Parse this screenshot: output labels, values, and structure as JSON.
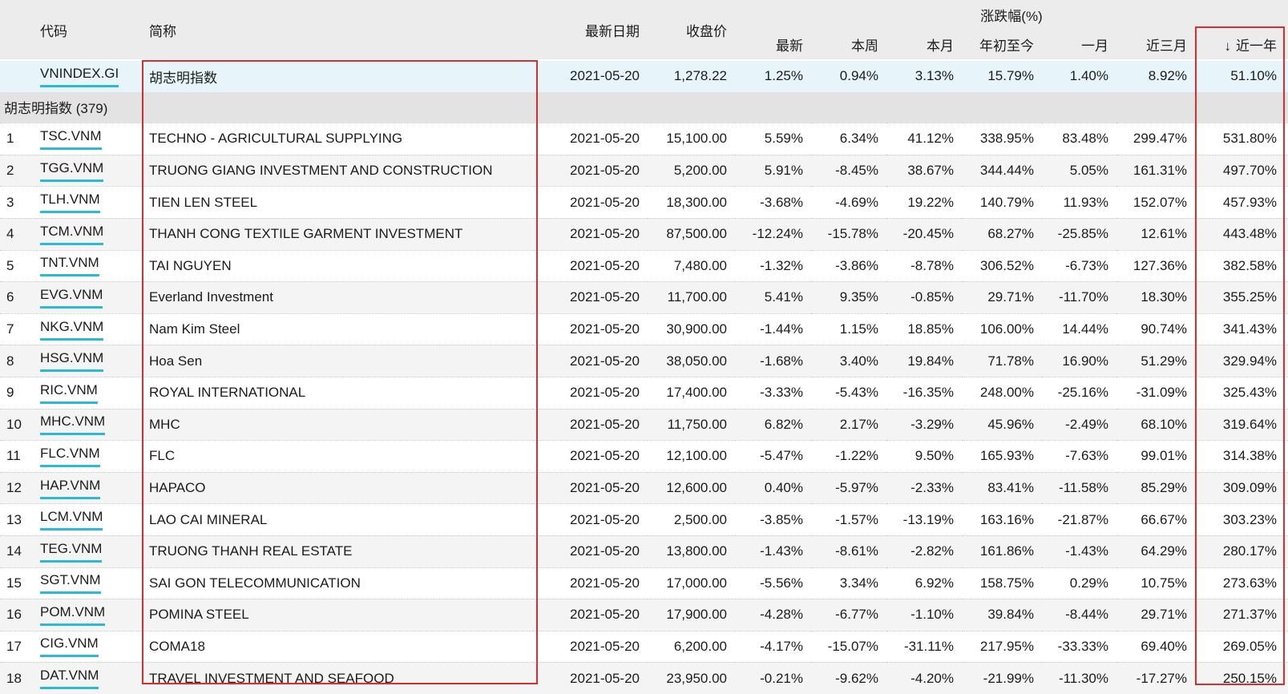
{
  "table": {
    "headers": {
      "code": "代码",
      "name": "简称",
      "date": "最新日期",
      "close": "收盘价",
      "change_group": "涨跌幅(%)",
      "sub": [
        "最新",
        "本周",
        "本月",
        "年初至今",
        "一月",
        "近三月",
        "近一年"
      ],
      "sort_arrow": "↓",
      "sorted_column": "近一年",
      "sort_direction": "descending"
    },
    "index_row": {
      "code": "VNINDEX.GI",
      "name": "胡志明指数",
      "date": "2021-05-20",
      "close": "1,278.22",
      "changes": [
        "1.25%",
        "0.94%",
        "3.13%",
        "15.79%",
        "1.40%",
        "8.92%",
        "51.10%"
      ]
    },
    "section_label": "胡志明指数 (379)",
    "rows": [
      {
        "idx": "1",
        "code": "TSC.VNM",
        "name": "TECHNO - AGRICULTURAL SUPPLYING",
        "date": "2021-05-20",
        "close": "15,100.00",
        "changes": [
          "5.59%",
          "6.34%",
          "41.12%",
          "338.95%",
          "83.48%",
          "299.47%",
          "531.80%"
        ]
      },
      {
        "idx": "2",
        "code": "TGG.VNM",
        "name": "TRUONG GIANG INVESTMENT AND CONSTRUCTION",
        "date": "2021-05-20",
        "close": "5,200.00",
        "changes": [
          "5.91%",
          "-8.45%",
          "38.67%",
          "344.44%",
          "5.05%",
          "161.31%",
          "497.70%"
        ]
      },
      {
        "idx": "3",
        "code": "TLH.VNM",
        "name": "TIEN LEN STEEL",
        "date": "2021-05-20",
        "close": "18,300.00",
        "changes": [
          "-3.68%",
          "-4.69%",
          "19.22%",
          "140.79%",
          "11.93%",
          "152.07%",
          "457.93%"
        ]
      },
      {
        "idx": "4",
        "code": "TCM.VNM",
        "name": "THANH CONG TEXTILE GARMENT INVESTMENT",
        "date": "2021-05-20",
        "close": "87,500.00",
        "changes": [
          "-12.24%",
          "-15.78%",
          "-20.45%",
          "68.27%",
          "-25.85%",
          "12.61%",
          "443.48%"
        ]
      },
      {
        "idx": "5",
        "code": "TNT.VNM",
        "name": "TAI NGUYEN",
        "date": "2021-05-20",
        "close": "7,480.00",
        "changes": [
          "-1.32%",
          "-3.86%",
          "-8.78%",
          "306.52%",
          "-6.73%",
          "127.36%",
          "382.58%"
        ]
      },
      {
        "idx": "6",
        "code": "EVG.VNM",
        "name": "Everland Investment",
        "date": "2021-05-20",
        "close": "11,700.00",
        "changes": [
          "5.41%",
          "9.35%",
          "-0.85%",
          "29.71%",
          "-11.70%",
          "18.30%",
          "355.25%"
        ]
      },
      {
        "idx": "7",
        "code": "NKG.VNM",
        "name": "Nam Kim Steel",
        "date": "2021-05-20",
        "close": "30,900.00",
        "changes": [
          "-1.44%",
          "1.15%",
          "18.85%",
          "106.00%",
          "14.44%",
          "90.74%",
          "341.43%"
        ]
      },
      {
        "idx": "8",
        "code": "HSG.VNM",
        "name": "Hoa Sen",
        "date": "2021-05-20",
        "close": "38,050.00",
        "changes": [
          "-1.68%",
          "3.40%",
          "19.84%",
          "71.78%",
          "16.90%",
          "51.29%",
          "329.94%"
        ]
      },
      {
        "idx": "9",
        "code": "RIC.VNM",
        "name": "ROYAL INTERNATIONAL",
        "date": "2021-05-20",
        "close": "17,400.00",
        "changes": [
          "-3.33%",
          "-5.43%",
          "-16.35%",
          "248.00%",
          "-25.16%",
          "-31.09%",
          "325.43%"
        ]
      },
      {
        "idx": "10",
        "code": "MHC.VNM",
        "name": "MHC",
        "date": "2021-05-20",
        "close": "11,750.00",
        "changes": [
          "6.82%",
          "2.17%",
          "-3.29%",
          "45.96%",
          "-2.49%",
          "68.10%",
          "319.64%"
        ]
      },
      {
        "idx": "11",
        "code": "FLC.VNM",
        "name": "FLC",
        "date": "2021-05-20",
        "close": "12,100.00",
        "changes": [
          "-5.47%",
          "-1.22%",
          "9.50%",
          "165.93%",
          "-7.63%",
          "99.01%",
          "314.38%"
        ]
      },
      {
        "idx": "12",
        "code": "HAP.VNM",
        "name": "HAPACO",
        "date": "2021-05-20",
        "close": "12,600.00",
        "changes": [
          "0.40%",
          "-5.97%",
          "-2.33%",
          "83.41%",
          "-11.58%",
          "85.29%",
          "309.09%"
        ]
      },
      {
        "idx": "13",
        "code": "LCM.VNM",
        "name": "LAO CAI MINERAL",
        "date": "2021-05-20",
        "close": "2,500.00",
        "changes": [
          "-3.85%",
          "-1.57%",
          "-13.19%",
          "163.16%",
          "-21.87%",
          "66.67%",
          "303.23%"
        ]
      },
      {
        "idx": "14",
        "code": "TEG.VNM",
        "name": "TRUONG THANH REAL ESTATE",
        "date": "2021-05-20",
        "close": "13,800.00",
        "changes": [
          "-1.43%",
          "-8.61%",
          "-2.82%",
          "161.86%",
          "-1.43%",
          "64.29%",
          "280.17%"
        ]
      },
      {
        "idx": "15",
        "code": "SGT.VNM",
        "name": "SAI GON TELECOMMUNICATION",
        "date": "2021-05-20",
        "close": "17,000.00",
        "changes": [
          "-5.56%",
          "3.34%",
          "6.92%",
          "158.75%",
          "0.29%",
          "10.75%",
          "273.63%"
        ]
      },
      {
        "idx": "16",
        "code": "POM.VNM",
        "name": "POMINA STEEL",
        "date": "2021-05-20",
        "close": "17,900.00",
        "changes": [
          "-4.28%",
          "-6.77%",
          "-1.10%",
          "39.84%",
          "-8.44%",
          "29.71%",
          "271.37%"
        ]
      },
      {
        "idx": "17",
        "code": "CIG.VNM",
        "name": "COMA18",
        "date": "2021-05-20",
        "close": "6,200.00",
        "changes": [
          "-4.17%",
          "-15.07%",
          "-31.11%",
          "217.95%",
          "-33.33%",
          "69.40%",
          "269.05%"
        ]
      },
      {
        "idx": "18",
        "code": "DAT.VNM",
        "name": "TRAVEL INVESTMENT AND SEAFOOD",
        "date": "2021-05-20",
        "close": "23,950.00",
        "changes": [
          "-0.21%",
          "-9.62%",
          "-4.20%",
          "-21.99%",
          "-11.30%",
          "-17.27%",
          "250.15%"
        ]
      }
    ]
  },
  "annotations": {
    "highlight_color": "#dd2c2c",
    "boxes": [
      "name-column-highlight",
      "change-1y-column-highlight"
    ]
  },
  "colors": {
    "code_underline": "#2eb8d8",
    "index_row_bg": "#e7f4fa",
    "section_row_bg": "#e3e3e3",
    "alt_row_bg": "#f4f4f4",
    "header_bg": "#ececec"
  }
}
